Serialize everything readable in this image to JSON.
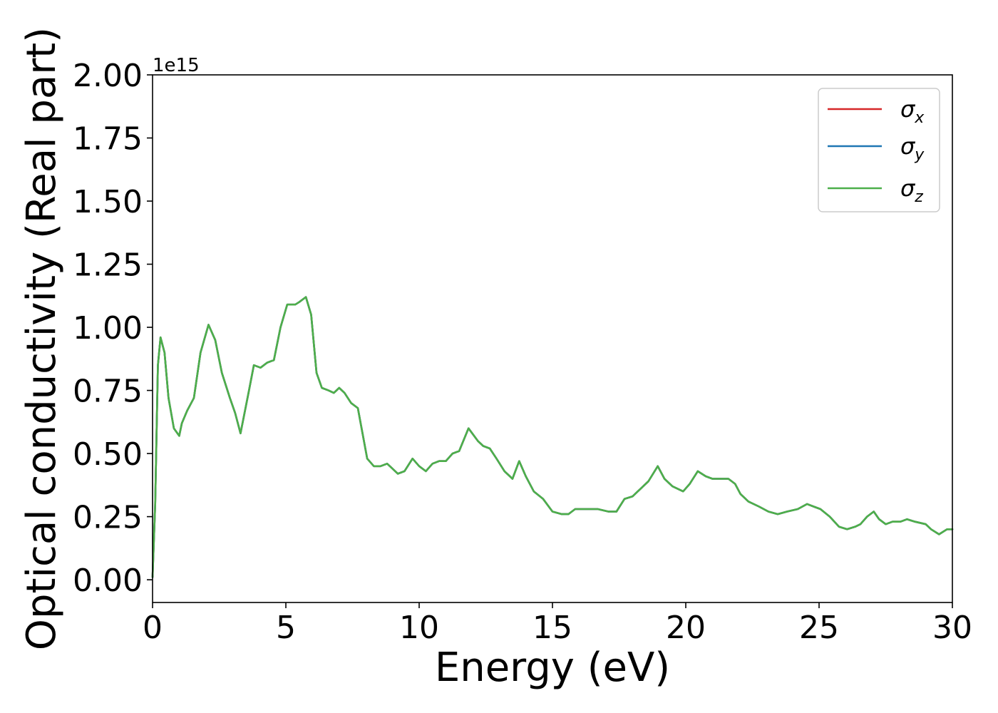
{
  "chart_data": {
    "type": "line",
    "xlabel": "Energy (eV)",
    "ylabel": "Optical conductivity (Real part)",
    "y_offset_text": "1e15",
    "xlim": [
      0,
      30
    ],
    "ylim": [
      -0.09,
      2.0
    ],
    "y_multiplier": 1000000000000000.0,
    "x_ticks": [
      0,
      5,
      10,
      15,
      20,
      25,
      30
    ],
    "x_tick_labels": [
      "0",
      "5",
      "10",
      "15",
      "20",
      "25",
      "30"
    ],
    "y_ticks": [
      0,
      0.25,
      0.5,
      0.75,
      1.0,
      1.25,
      1.5,
      1.75,
      2.0
    ],
    "y_tick_labels": [
      "0.00",
      "0.25",
      "0.50",
      "0.75",
      "1.00",
      "1.25",
      "1.50",
      "1.75",
      "2.00"
    ],
    "grid": false,
    "legend_position": "top-right",
    "x": [
      0,
      0.1,
      0.2,
      0.3,
      0.45,
      0.6,
      0.8,
      1.0,
      1.1,
      1.3,
      1.55,
      1.8,
      2.1,
      2.35,
      2.6,
      2.9,
      3.1,
      3.3,
      3.6,
      3.8,
      4.05,
      4.3,
      4.55,
      4.8,
      5.05,
      5.35,
      5.5,
      5.75,
      5.95,
      6.15,
      6.35,
      6.6,
      6.8,
      7.0,
      7.2,
      7.45,
      7.7,
      8.05,
      8.3,
      8.55,
      8.8,
      9.0,
      9.2,
      9.45,
      9.75,
      10.0,
      10.25,
      10.5,
      10.75,
      11.0,
      11.25,
      11.5,
      11.85,
      12.2,
      12.4,
      12.65,
      12.9,
      13.2,
      13.5,
      13.75,
      14.0,
      14.3,
      14.65,
      15.0,
      15.35,
      15.6,
      15.85,
      16.1,
      16.4,
      16.7,
      17.1,
      17.4,
      17.7,
      18.0,
      18.3,
      18.6,
      18.95,
      19.2,
      19.5,
      19.9,
      20.15,
      20.45,
      20.75,
      21.0,
      21.35,
      21.6,
      21.85,
      22.05,
      22.35,
      22.75,
      23.1,
      23.45,
      23.8,
      24.2,
      24.55,
      24.8,
      25.05,
      25.4,
      25.75,
      26.05,
      26.35,
      26.55,
      26.8,
      27.05,
      27.25,
      27.5,
      27.75,
      28.05,
      28.3,
      28.6,
      29.0,
      29.2,
      29.5,
      29.8,
      30.0
    ],
    "series": [
      {
        "name": "σ_x",
        "color": "#d62728",
        "values": [
          0.01,
          0.3,
          0.85,
          0.96,
          0.9,
          0.72,
          0.6,
          0.57,
          0.62,
          0.67,
          0.72,
          0.9,
          1.01,
          0.95,
          0.82,
          0.72,
          0.66,
          0.58,
          0.74,
          0.85,
          0.84,
          0.86,
          0.87,
          1.0,
          1.09,
          1.09,
          1.1,
          1.12,
          1.05,
          0.82,
          0.76,
          0.75,
          0.74,
          0.76,
          0.74,
          0.7,
          0.68,
          0.48,
          0.45,
          0.45,
          0.46,
          0.44,
          0.42,
          0.43,
          0.48,
          0.45,
          0.43,
          0.46,
          0.47,
          0.47,
          0.5,
          0.51,
          0.6,
          0.55,
          0.53,
          0.52,
          0.48,
          0.43,
          0.4,
          0.47,
          0.41,
          0.35,
          0.32,
          0.27,
          0.26,
          0.26,
          0.28,
          0.28,
          0.28,
          0.28,
          0.27,
          0.27,
          0.32,
          0.33,
          0.36,
          0.39,
          0.45,
          0.4,
          0.37,
          0.35,
          0.38,
          0.43,
          0.41,
          0.4,
          0.4,
          0.4,
          0.38,
          0.34,
          0.31,
          0.29,
          0.27,
          0.26,
          0.27,
          0.28,
          0.3,
          0.29,
          0.28,
          0.25,
          0.21,
          0.2,
          0.21,
          0.22,
          0.25,
          0.27,
          0.24,
          0.22,
          0.23,
          0.23,
          0.24,
          0.23,
          0.22,
          0.2,
          0.18,
          0.2,
          0.2
        ]
      },
      {
        "name": "σ_y",
        "color": "#1f77b4",
        "values": [
          0.01,
          0.3,
          0.85,
          0.96,
          0.9,
          0.72,
          0.6,
          0.57,
          0.62,
          0.67,
          0.72,
          0.9,
          1.01,
          0.95,
          0.82,
          0.72,
          0.66,
          0.58,
          0.74,
          0.85,
          0.84,
          0.86,
          0.87,
          1.0,
          1.09,
          1.09,
          1.1,
          1.12,
          1.05,
          0.82,
          0.76,
          0.75,
          0.74,
          0.76,
          0.74,
          0.7,
          0.68,
          0.48,
          0.45,
          0.45,
          0.46,
          0.44,
          0.42,
          0.43,
          0.48,
          0.45,
          0.43,
          0.46,
          0.47,
          0.47,
          0.5,
          0.51,
          0.6,
          0.55,
          0.53,
          0.52,
          0.48,
          0.43,
          0.4,
          0.47,
          0.41,
          0.35,
          0.32,
          0.27,
          0.26,
          0.26,
          0.28,
          0.28,
          0.28,
          0.28,
          0.27,
          0.27,
          0.32,
          0.33,
          0.36,
          0.39,
          0.45,
          0.4,
          0.37,
          0.35,
          0.38,
          0.43,
          0.41,
          0.4,
          0.4,
          0.4,
          0.38,
          0.34,
          0.31,
          0.29,
          0.27,
          0.26,
          0.27,
          0.28,
          0.3,
          0.29,
          0.28,
          0.25,
          0.21,
          0.2,
          0.21,
          0.22,
          0.25,
          0.27,
          0.24,
          0.22,
          0.23,
          0.23,
          0.24,
          0.23,
          0.22,
          0.2,
          0.18,
          0.2,
          0.2
        ]
      },
      {
        "name": "σ_z",
        "color": "#4daf4a",
        "values": [
          0.01,
          0.3,
          0.85,
          0.96,
          0.9,
          0.72,
          0.6,
          0.57,
          0.62,
          0.67,
          0.72,
          0.9,
          1.01,
          0.95,
          0.82,
          0.72,
          0.66,
          0.58,
          0.74,
          0.85,
          0.84,
          0.86,
          0.87,
          1.0,
          1.09,
          1.09,
          1.1,
          1.12,
          1.05,
          0.82,
          0.76,
          0.75,
          0.74,
          0.76,
          0.74,
          0.7,
          0.68,
          0.48,
          0.45,
          0.45,
          0.46,
          0.44,
          0.42,
          0.43,
          0.48,
          0.45,
          0.43,
          0.46,
          0.47,
          0.47,
          0.5,
          0.51,
          0.6,
          0.55,
          0.53,
          0.52,
          0.48,
          0.43,
          0.4,
          0.47,
          0.41,
          0.35,
          0.32,
          0.27,
          0.26,
          0.26,
          0.28,
          0.28,
          0.28,
          0.28,
          0.27,
          0.27,
          0.32,
          0.33,
          0.36,
          0.39,
          0.45,
          0.4,
          0.37,
          0.35,
          0.38,
          0.43,
          0.41,
          0.4,
          0.4,
          0.4,
          0.38,
          0.34,
          0.31,
          0.29,
          0.27,
          0.26,
          0.27,
          0.28,
          0.3,
          0.29,
          0.28,
          0.25,
          0.21,
          0.2,
          0.21,
          0.22,
          0.25,
          0.27,
          0.24,
          0.22,
          0.23,
          0.23,
          0.24,
          0.23,
          0.22,
          0.2,
          0.18,
          0.2,
          0.2
        ]
      }
    ],
    "legend": [
      {
        "symbol": "σ",
        "subscript": "x",
        "color": "#d62728"
      },
      {
        "symbol": "σ",
        "subscript": "y",
        "color": "#1f77b4"
      },
      {
        "symbol": "σ",
        "subscript": "z",
        "color": "#4daf4a"
      }
    ]
  }
}
